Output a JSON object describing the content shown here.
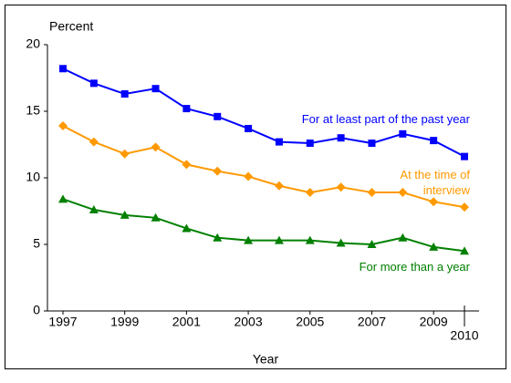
{
  "chart_data": {
    "type": "line",
    "y_label": "Percent",
    "x_label": "Year",
    "x": [
      1997,
      1998,
      1999,
      2000,
      2001,
      2002,
      2003,
      2004,
      2005,
      2006,
      2007,
      2008,
      2009,
      2010
    ],
    "series": [
      {
        "name": "For at least part of the past year",
        "color": "#0000ff",
        "marker": "square",
        "values": [
          18.2,
          17.1,
          16.3,
          16.7,
          15.2,
          14.6,
          13.7,
          12.7,
          12.6,
          13.0,
          12.6,
          13.3,
          12.8,
          11.6
        ]
      },
      {
        "name": "At the time of interview",
        "color": "#ff9900",
        "marker": "diamond",
        "values": [
          13.9,
          12.7,
          11.8,
          12.3,
          11.0,
          10.5,
          10.1,
          9.4,
          8.9,
          9.3,
          8.9,
          8.9,
          8.2,
          7.8
        ]
      },
      {
        "name": "For more than a year",
        "color": "#008000",
        "marker": "triangle",
        "values": [
          8.4,
          7.6,
          7.2,
          7.0,
          6.2,
          5.5,
          5.3,
          5.3,
          5.3,
          5.1,
          5.0,
          5.5,
          4.8,
          4.5
        ]
      }
    ],
    "xlim": [
      1997,
      2010
    ],
    "xticks": [
      1997,
      1999,
      2001,
      2003,
      2005,
      2007,
      2009,
      2010
    ],
    "ylim": [
      0,
      20
    ],
    "yticks": [
      0,
      5,
      10,
      15,
      20
    ]
  }
}
